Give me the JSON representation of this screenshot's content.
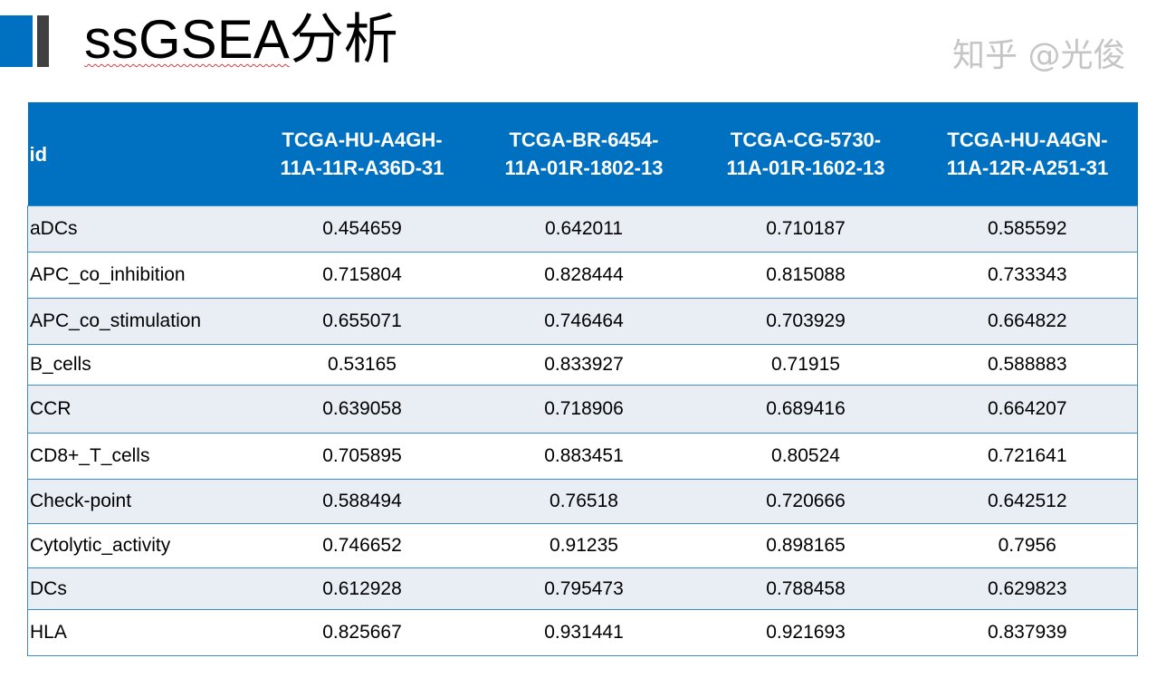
{
  "title": {
    "en": "ssGSEA",
    "zh": "分析"
  },
  "colors": {
    "header_bg": "#0070C0",
    "row_alt": "#E9EDF4",
    "accent_gray": "#404040"
  },
  "table": {
    "headers": [
      "id",
      "TCGA-HU-A4GH-11A-11R-A36D-31",
      "TCGA-BR-6454-11A-01R-1802-13",
      "TCGA-CG-5730-11A-01R-1602-13",
      "TCGA-HU-A4GN-11A-12R-A251-31"
    ],
    "header_lines": [
      [
        "id"
      ],
      [
        "TCGA-HU-A4GH-",
        "11A-11R-A36D-31"
      ],
      [
        "TCGA-BR-6454-",
        "11A-01R-1802-13"
      ],
      [
        "TCGA-CG-5730-",
        "11A-01R-1602-13"
      ],
      [
        "TCGA-HU-A4GN-",
        "11A-12R-A251-31"
      ]
    ],
    "rows": [
      [
        "aDCs",
        "0.454659",
        "0.642011",
        "0.710187",
        "0.585592"
      ],
      [
        "APC_co_inhibition",
        "0.715804",
        "0.828444",
        "0.815088",
        "0.733343"
      ],
      [
        "APC_co_stimulation",
        "0.655071",
        "0.746464",
        "0.703929",
        "0.664822"
      ],
      [
        "B_cells",
        "0.53165",
        "0.833927",
        "0.71915",
        "0.588883"
      ],
      [
        "CCR",
        "0.639058",
        "0.718906",
        "0.689416",
        "0.664207"
      ],
      [
        "CD8+_T_cells",
        "0.705895",
        "0.883451",
        "0.80524",
        "0.721641"
      ],
      [
        "Check-point",
        "0.588494",
        "0.76518",
        "0.720666",
        "0.642512"
      ],
      [
        "Cytolytic_activity",
        "0.746652",
        "0.91235",
        "0.898165",
        "0.7956"
      ],
      [
        "DCs",
        "0.612928",
        "0.795473",
        "0.788458",
        "0.629823"
      ],
      [
        "HLA",
        "0.825667",
        "0.931441",
        "0.921693",
        "0.837939"
      ]
    ]
  },
  "watermark": "知乎 @光俊"
}
